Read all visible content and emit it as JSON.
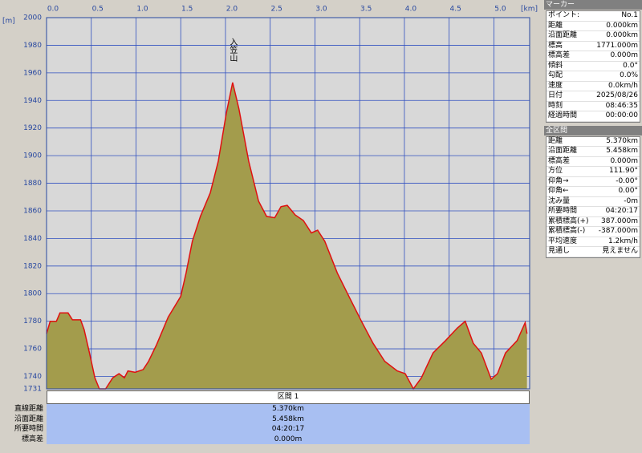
{
  "chart_data": {
    "type": "area",
    "x_unit": "[km]",
    "y_unit": "[m]",
    "annotation": "入笠山",
    "annotation_x": 2.08,
    "x": [
      0,
      0.04,
      0.11,
      0.15,
      0.24,
      0.29,
      0.38,
      0.42,
      0.48,
      0.54,
      0.59,
      0.66,
      0.74,
      0.81,
      0.87,
      0.91,
      0.99,
      1.08,
      1.14,
      1.23,
      1.36,
      1.5,
      1.56,
      1.63,
      1.72,
      1.83,
      1.92,
      2.01,
      2.08,
      2.15,
      2.26,
      2.37,
      2.46,
      2.55,
      2.62,
      2.69,
      2.78,
      2.87,
      2.96,
      3.03,
      3.11,
      3.25,
      3.38,
      3.52,
      3.65,
      3.78,
      3.92,
      4.01,
      4.1,
      4.19,
      4.32,
      4.46,
      4.59,
      4.68,
      4.77,
      4.86,
      4.97,
      5.04,
      5.13,
      5.26,
      5.35,
      5.37
    ],
    "values": [
      1771,
      1780,
      1780,
      1786,
      1786,
      1781,
      1781,
      1774,
      1757,
      1739,
      1731,
      1731,
      1739,
      1742,
      1739,
      1744,
      1743,
      1745,
      1751,
      1763,
      1783,
      1798,
      1815,
      1838,
      1856,
      1873,
      1896,
      1931,
      1953,
      1934,
      1896,
      1867,
      1856,
      1855,
      1863,
      1864,
      1857,
      1853,
      1844,
      1846,
      1838,
      1815,
      1798,
      1780,
      1764,
      1751,
      1744,
      1742,
      1731,
      1739,
      1757,
      1766,
      1775,
      1780,
      1764,
      1757,
      1738,
      1742,
      1757,
      1766,
      1779,
      1771
    ],
    "fill_color": "#a39c4c",
    "line_color": "#e01010",
    "grid": true,
    "xlim": [
      0,
      5.4
    ],
    "ylim": [
      1731,
      2000
    ],
    "xticks": [
      {
        "value": 0,
        "label": "0.0"
      },
      0.5,
      {
        "value": 1,
        "label": "1.0"
      },
      1.5,
      {
        "value": 2,
        "label": "2.0"
      },
      2.5,
      {
        "value": 3,
        "label": "3.0"
      },
      3.5,
      {
        "value": 4,
        "label": "4.0"
      },
      4.5,
      {
        "value": 5,
        "label": "5.0"
      }
    ],
    "yticks": [
      1731,
      1740,
      1760,
      1780,
      1800,
      1820,
      1840,
      1860,
      1880,
      1900,
      1920,
      1940,
      1960,
      1980,
      2000
    ]
  },
  "marker_panel": {
    "title": "マーカー",
    "rows": [
      [
        "ポイント:",
        "No.1"
      ],
      [
        "距離",
        "0.000km"
      ],
      [
        "沿面距離",
        "0.000km"
      ],
      [
        "標高",
        "1771.000m"
      ],
      [
        "標高差",
        "0.000m"
      ],
      [
        "傾斜",
        "0.0°"
      ],
      [
        "勾配",
        "0.0%"
      ],
      [
        "速度",
        "0.0km/h"
      ],
      [
        "日付",
        "2025/08/26"
      ],
      [
        "時刻",
        "08:46:35"
      ],
      [
        "経過時間",
        "00:00:00"
      ]
    ]
  },
  "total_panel": {
    "title": "全区間",
    "rows": [
      [
        "距離",
        "5.370km"
      ],
      [
        "沿面距離",
        "5.458km"
      ],
      [
        "標高差",
        "0.000m"
      ],
      [
        "方位",
        "111.90°"
      ],
      [
        "仰角→",
        "-0.00°"
      ],
      [
        "仰角←",
        "0.00°"
      ],
      [
        "沈み量",
        "-0m"
      ],
      [
        "所要時間",
        "04:20:17"
      ],
      [
        "累積標高(+)",
        "387.000m"
      ],
      [
        "累積標高(-)",
        "-387.000m"
      ],
      [
        "平均速度",
        "1.2km/h"
      ],
      [
        "見通し",
        "見えません"
      ]
    ]
  },
  "section_table": {
    "title": "区間 1",
    "rows": [
      [
        "直線距離",
        "5.370km"
      ],
      [
        "沿面距離",
        "5.458km"
      ],
      [
        "所要時間",
        "04:20:17"
      ],
      [
        "標高差",
        "0.000m"
      ]
    ]
  }
}
